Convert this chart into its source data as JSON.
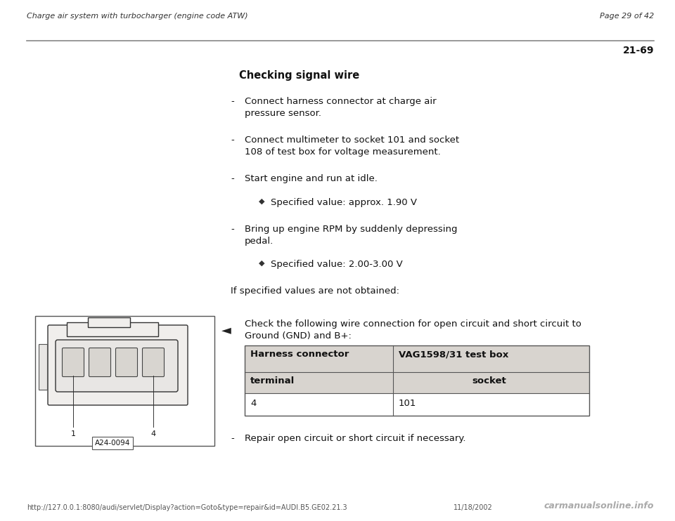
{
  "bg_color": "#ffffff",
  "header_left": "Charge air system with turbocharger (engine code ATW)",
  "header_right": "Page 29 of 42",
  "page_number": "21-69",
  "title": "Checking signal wire",
  "footer_url": "http://127.0.0.1:8080/audi/servlet/Display?action=Goto&type=repair&id=AUDI.B5.GE02.21.3",
  "footer_date": "11/18/2002",
  "footer_logo": "carmanualsonline.info",
  "table_header1": "Harness connector",
  "table_header2": "VAG1598/31 test box",
  "table_sub1": "terminal",
  "table_sub2": "socket",
  "table_val1": "4",
  "table_val2": "101",
  "check_text_line1": "Check the following wire connection for open circuit and short circuit to",
  "check_text_line2": "Ground (GND) and B+:",
  "repair_text": "Repair open circuit or short circuit if necessary.",
  "if_text": "If specified values are not obtained:",
  "bullet1_line1": "Connect harness connector at charge air",
  "bullet1_line2": "pressure sensor.",
  "bullet2_line1": "Connect multimeter to socket 101 and socket",
  "bullet2_line2": "108 of test box for voltage measurement.",
  "bullet3": "Start engine and run at idle.",
  "diamond1": "Specified value: approx. 1.90 V",
  "bullet4_line1": "Bring up engine RPM by suddenly depressing",
  "bullet4_line2": "pedal.",
  "diamond2": "Specified value: 2.00-3.00 V"
}
